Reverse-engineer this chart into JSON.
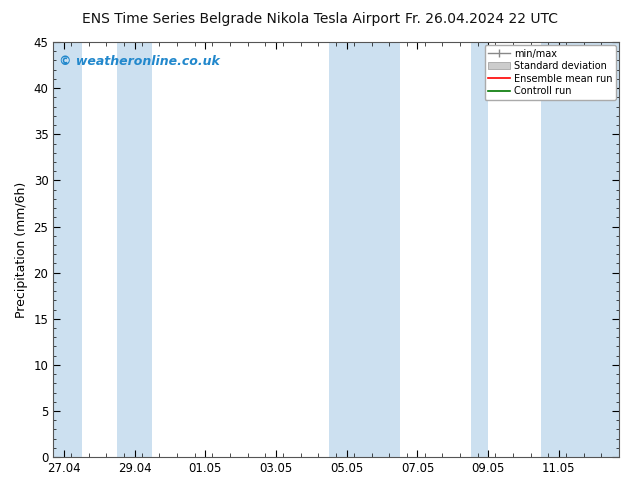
{
  "title_left": "ENS Time Series Belgrade Nikola Tesla Airport",
  "title_right": "Fr. 26.04.2024 22 UTC",
  "ylabel": "Precipitation (mm/6h)",
  "watermark": "© weatheronline.co.uk",
  "ylim": [
    0,
    45
  ],
  "yticks": [
    0,
    5,
    10,
    15,
    20,
    25,
    30,
    35,
    40,
    45
  ],
  "xtick_labels": [
    "27.04",
    "29.04",
    "01.05",
    "03.05",
    "05.05",
    "07.05",
    "09.05",
    "11.05"
  ],
  "xtick_positions": [
    0,
    2,
    4,
    6,
    8,
    10,
    12,
    14
  ],
  "xmin": -0.3,
  "xmax": 15.7,
  "background_color": "#ffffff",
  "plot_bg_color": "#ffffff",
  "shading_color": "#cce0f0",
  "shading_alpha": 1.0,
  "shaded_bands": [
    [
      -0.3,
      0.5
    ],
    [
      1.5,
      2.5
    ],
    [
      7.5,
      9.5
    ],
    [
      11.5,
      12.0
    ],
    [
      13.5,
      15.7
    ]
  ],
  "legend_entries": [
    "min/max",
    "Standard deviation",
    "Ensemble mean run",
    "Controll run"
  ],
  "legend_colors": [
    "#888888",
    "#bbbbbb",
    "#ff0000",
    "#007700"
  ],
  "title_fontsize": 10,
  "axis_fontsize": 9,
  "tick_fontsize": 8.5,
  "watermark_fontsize": 9,
  "watermark_color": "#2288cc"
}
